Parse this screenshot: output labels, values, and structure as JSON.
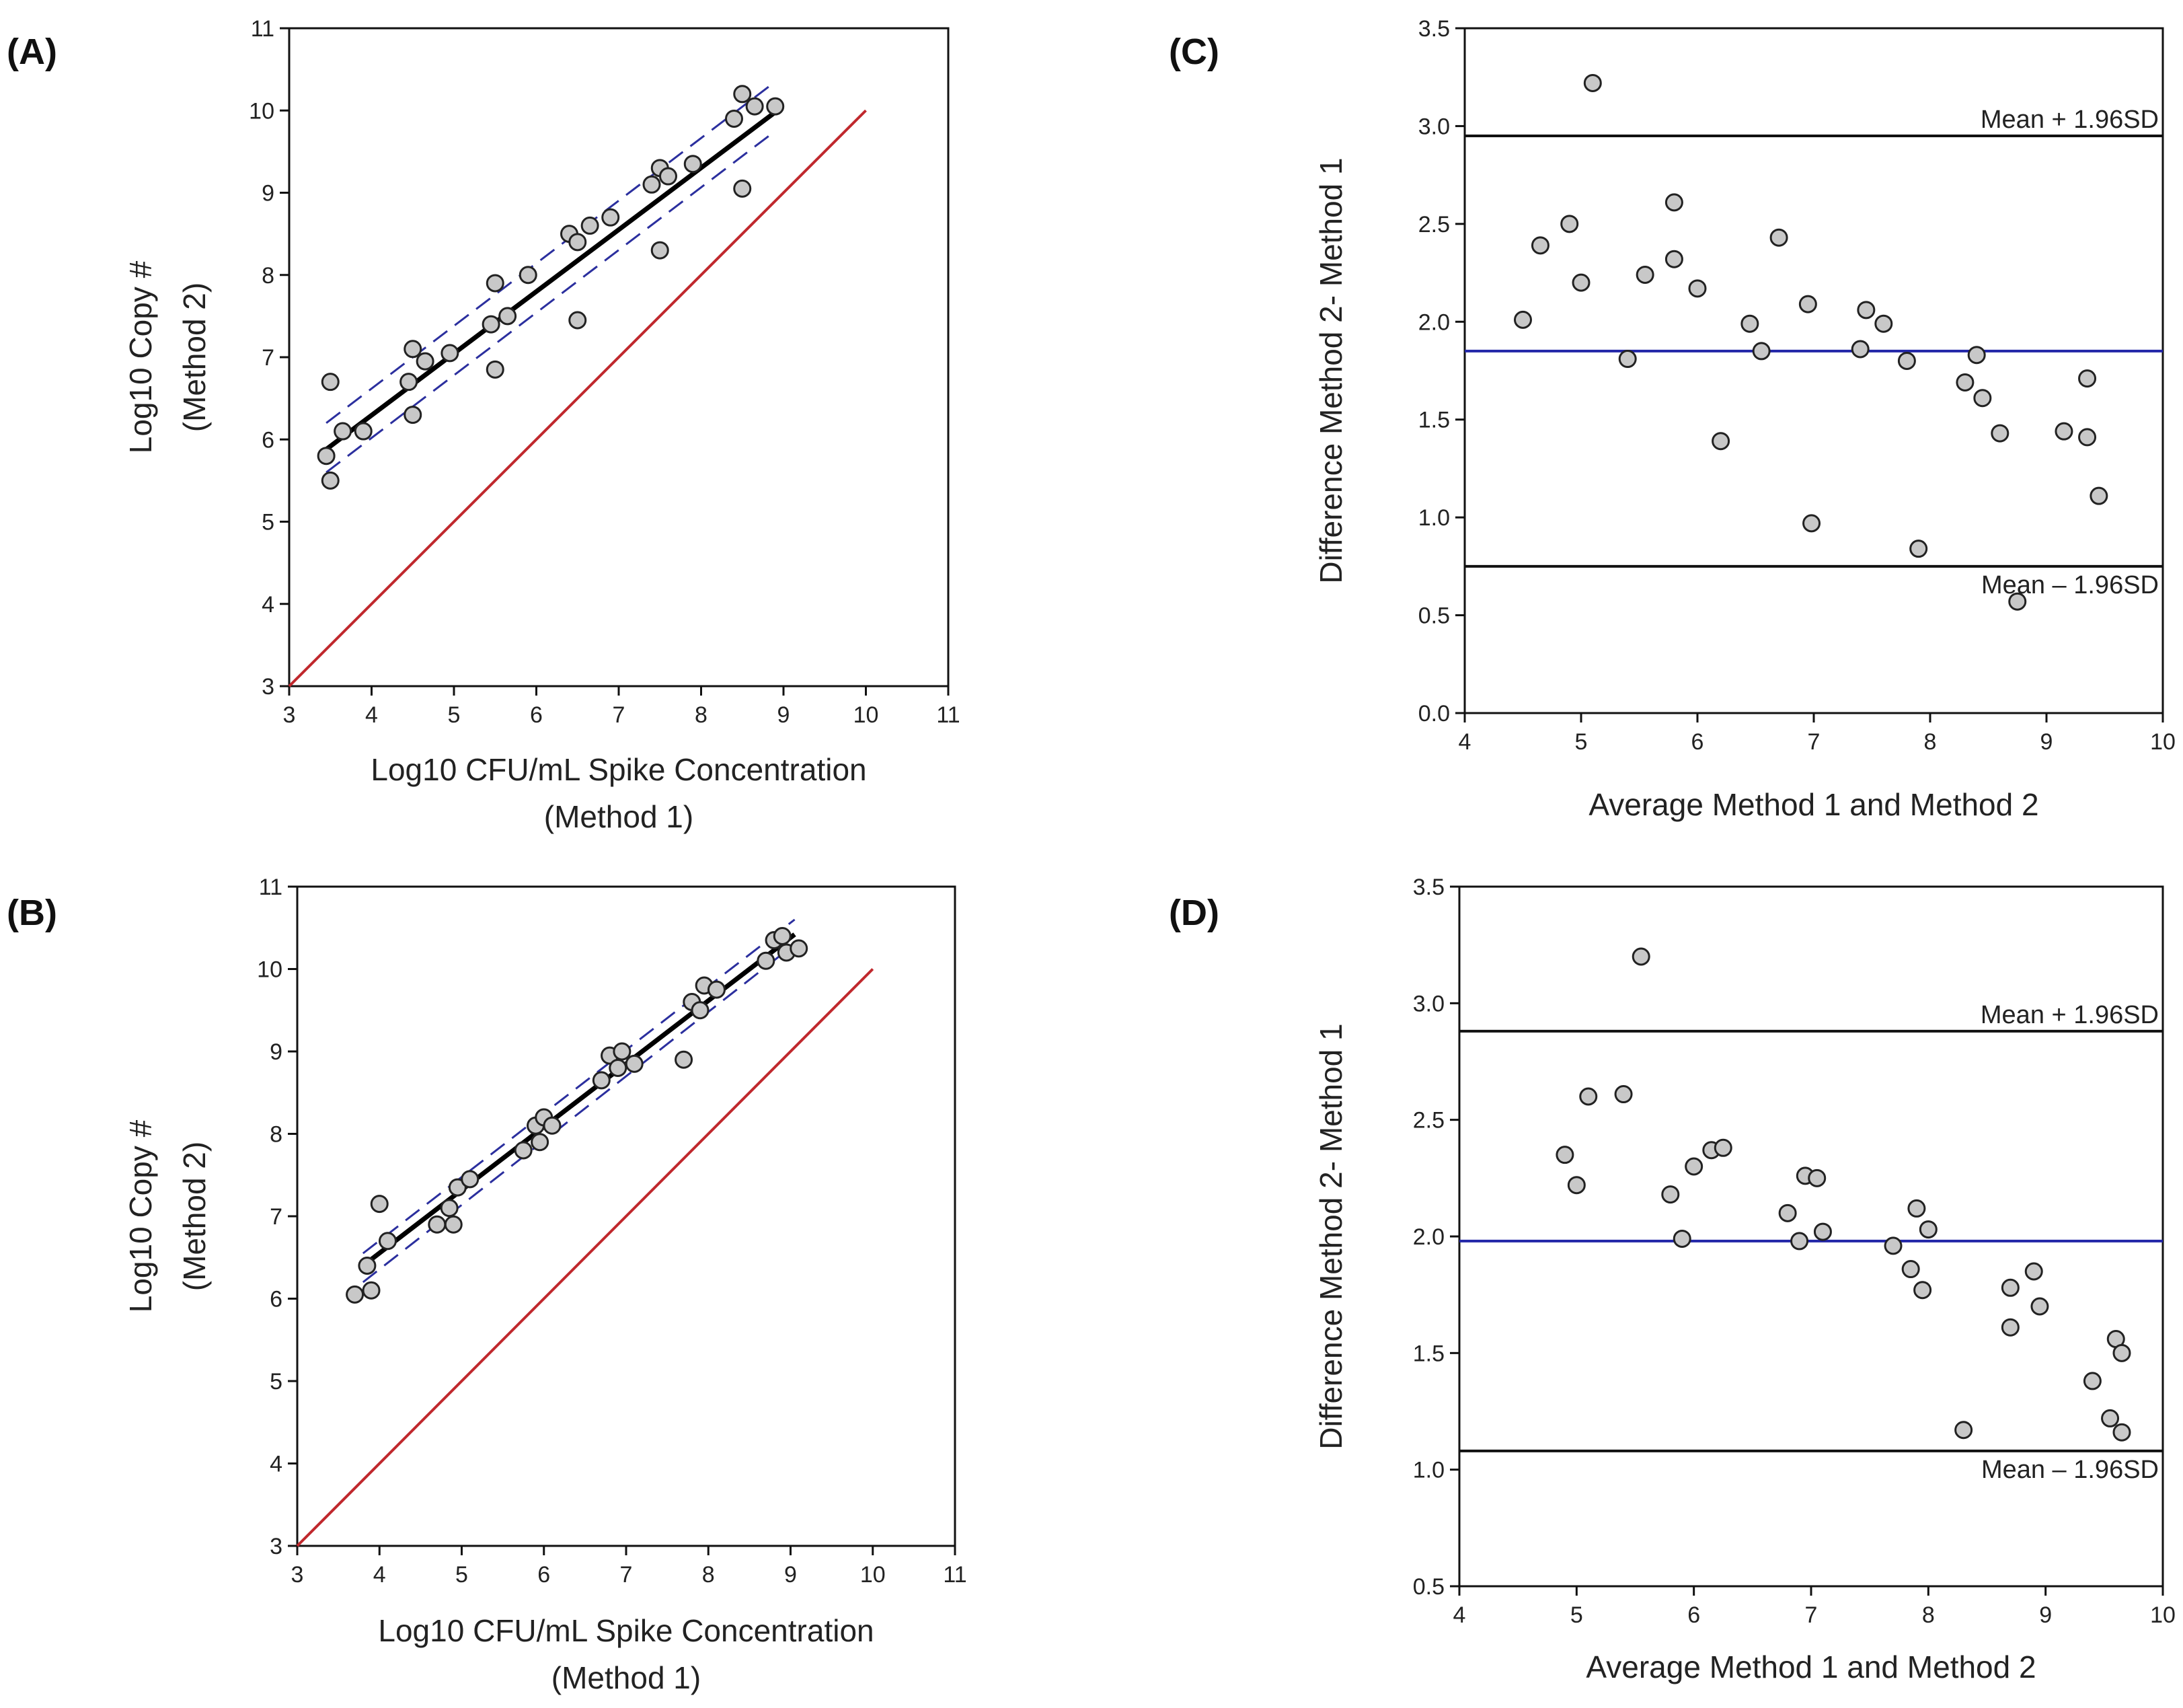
{
  "chart_data": [
    {
      "panel": "(A)",
      "type": "scatter",
      "xlabel": [
        "Log10 CFU/mL Spike Concentration",
        "(Method 1)"
      ],
      "ylabel": [
        "Log10 Copy #",
        "(Method 2)"
      ],
      "xlim": [
        3,
        11
      ],
      "ylim": [
        3,
        11
      ],
      "xticks": [
        "3",
        "4",
        "5",
        "6",
        "7",
        "8",
        "9",
        "10",
        "11"
      ],
      "yticks": [
        "3",
        "4",
        "5",
        "6",
        "7",
        "8",
        "9",
        "10",
        "11"
      ],
      "points": [
        [
          3.45,
          5.8
        ],
        [
          3.5,
          5.5
        ],
        [
          3.5,
          6.7
        ],
        [
          3.65,
          6.1
        ],
        [
          3.9,
          6.1
        ],
        [
          4.45,
          6.7
        ],
        [
          4.5,
          7.1
        ],
        [
          4.5,
          6.3
        ],
        [
          4.65,
          6.95
        ],
        [
          4.95,
          7.05
        ],
        [
          5.45,
          7.4
        ],
        [
          5.5,
          7.9
        ],
        [
          5.5,
          6.85
        ],
        [
          5.65,
          7.5
        ],
        [
          5.9,
          8.0
        ],
        [
          6.4,
          8.5
        ],
        [
          6.5,
          8.4
        ],
        [
          6.5,
          7.45
        ],
        [
          6.65,
          8.6
        ],
        [
          6.9,
          8.7
        ],
        [
          7.4,
          9.1
        ],
        [
          7.5,
          9.3
        ],
        [
          7.5,
          8.3
        ],
        [
          7.6,
          9.2
        ],
        [
          7.9,
          9.35
        ],
        [
          8.4,
          9.9
        ],
        [
          8.5,
          10.2
        ],
        [
          8.5,
          9.05
        ],
        [
          8.65,
          10.05
        ],
        [
          8.9,
          10.05
        ]
      ],
      "fit": {
        "from": [
          3.45,
          5.88
        ],
        "to": [
          8.9,
          9.98
        ]
      },
      "ci": {
        "upper": [
          [
            3.45,
            6.2
          ],
          [
            8.9,
            10.35
          ]
        ],
        "lower": [
          [
            3.45,
            5.6
          ],
          [
            8.9,
            9.75
          ]
        ]
      },
      "identity": {
        "from": [
          3,
          3
        ],
        "to": [
          10,
          10
        ]
      }
    },
    {
      "panel": "(B)",
      "type": "scatter",
      "xlabel": [
        "Log10 CFU/mL Spike Concentration",
        "(Method 1)"
      ],
      "ylabel": [
        "Log10 Copy #",
        "(Method 2)"
      ],
      "xlim": [
        3,
        11
      ],
      "ylim": [
        3,
        11
      ],
      "xticks": [
        "3",
        "4",
        "5",
        "6",
        "7",
        "8",
        "9",
        "10",
        "11"
      ],
      "yticks": [
        "3",
        "4",
        "5",
        "6",
        "7",
        "8",
        "9",
        "10",
        "11"
      ],
      "points": [
        [
          3.7,
          6.05
        ],
        [
          3.85,
          6.4
        ],
        [
          3.9,
          6.1
        ],
        [
          4.0,
          7.15
        ],
        [
          4.1,
          6.7
        ],
        [
          4.7,
          6.9
        ],
        [
          4.85,
          7.1
        ],
        [
          4.9,
          6.9
        ],
        [
          4.95,
          7.35
        ],
        [
          5.1,
          7.45
        ],
        [
          5.75,
          7.8
        ],
        [
          5.9,
          8.1
        ],
        [
          5.95,
          7.9
        ],
        [
          6.0,
          8.2
        ],
        [
          6.1,
          8.1
        ],
        [
          6.7,
          8.65
        ],
        [
          6.8,
          8.95
        ],
        [
          6.9,
          8.8
        ],
        [
          6.95,
          9.0
        ],
        [
          7.1,
          8.85
        ],
        [
          7.7,
          8.9
        ],
        [
          7.8,
          9.6
        ],
        [
          7.9,
          9.5
        ],
        [
          7.95,
          9.8
        ],
        [
          8.1,
          9.75
        ],
        [
          8.7,
          10.1
        ],
        [
          8.8,
          10.35
        ],
        [
          8.9,
          10.4
        ],
        [
          8.95,
          10.2
        ],
        [
          9.1,
          10.25
        ]
      ],
      "fit": {
        "from": [
          3.8,
          6.4
        ],
        "to": [
          9.05,
          10.42
        ]
      },
      "ci": {
        "upper": [
          [
            3.8,
            6.55
          ],
          [
            9.05,
            10.6
          ]
        ],
        "lower": [
          [
            3.8,
            6.2
          ],
          [
            9.05,
            10.3
          ]
        ]
      },
      "identity": {
        "from": [
          3,
          3
        ],
        "to": [
          10,
          10
        ]
      }
    },
    {
      "panel": "(C)",
      "type": "scatter",
      "xlabel": [
        "Average Method 1 and Method 2"
      ],
      "ylabel": [
        "Difference Method 2- Method 1"
      ],
      "xlim": [
        4,
        10
      ],
      "ylim": [
        0,
        3.5
      ],
      "xticks": [
        "4",
        "5",
        "6",
        "7",
        "8",
        "9",
        "10"
      ],
      "yticks": [
        "0.0",
        "0.5",
        "1.0",
        "1.5",
        "2.0",
        "2.5",
        "3.0",
        "3.5"
      ],
      "mean": 1.85,
      "upper_loa": {
        "value": 2.95,
        "label": "Mean + 1.96SD"
      },
      "lower_loa": {
        "value": 0.75,
        "label": "Mean – 1.96SD"
      },
      "points": [
        [
          4.5,
          2.01
        ],
        [
          4.65,
          2.39
        ],
        [
          4.9,
          2.5
        ],
        [
          5.0,
          2.2
        ],
        [
          5.1,
          3.22
        ],
        [
          5.4,
          1.81
        ],
        [
          5.55,
          2.24
        ],
        [
          5.8,
          2.61
        ],
        [
          5.8,
          2.32
        ],
        [
          6.0,
          2.17
        ],
        [
          6.2,
          1.39
        ],
        [
          6.45,
          1.99
        ],
        [
          6.55,
          1.85
        ],
        [
          6.7,
          2.43
        ],
        [
          6.95,
          2.09
        ],
        [
          6.98,
          0.97
        ],
        [
          7.4,
          1.86
        ],
        [
          7.45,
          2.06
        ],
        [
          7.6,
          1.99
        ],
        [
          7.8,
          1.8
        ],
        [
          7.9,
          0.84
        ],
        [
          8.3,
          1.69
        ],
        [
          8.4,
          1.83
        ],
        [
          8.45,
          1.61
        ],
        [
          8.6,
          1.43
        ],
        [
          8.75,
          0.57
        ],
        [
          9.15,
          1.44
        ],
        [
          9.35,
          1.41
        ],
        [
          9.35,
          1.71
        ],
        [
          9.45,
          1.11
        ]
      ]
    },
    {
      "panel": "(D)",
      "type": "scatter",
      "xlabel": [
        "Average Method 1 and Method 2"
      ],
      "ylabel": [
        "Difference Method 2- Method 1"
      ],
      "xlim": [
        4,
        10
      ],
      "ylim": [
        0.5,
        3.5
      ],
      "xticks": [
        "4",
        "5",
        "6",
        "7",
        "8",
        "9",
        "10"
      ],
      "yticks": [
        "0.5",
        "1.0",
        "1.5",
        "2.0",
        "2.5",
        "3.0",
        "3.5"
      ],
      "mean": 1.98,
      "upper_loa": {
        "value": 2.88,
        "label": "Mean + 1.96SD"
      },
      "lower_loa": {
        "value": 1.08,
        "label": "Mean – 1.96SD"
      },
      "points": [
        [
          4.9,
          2.35
        ],
        [
          5.0,
          2.22
        ],
        [
          5.1,
          2.6
        ],
        [
          5.4,
          2.61
        ],
        [
          5.55,
          3.2
        ],
        [
          5.8,
          2.18
        ],
        [
          5.9,
          1.99
        ],
        [
          6.0,
          2.3
        ],
        [
          6.15,
          2.37
        ],
        [
          6.25,
          2.38
        ],
        [
          6.8,
          2.1
        ],
        [
          6.9,
          1.98
        ],
        [
          6.95,
          2.26
        ],
        [
          7.05,
          2.25
        ],
        [
          7.1,
          2.02
        ],
        [
          7.7,
          1.96
        ],
        [
          7.85,
          1.86
        ],
        [
          7.9,
          2.12
        ],
        [
          7.95,
          1.77
        ],
        [
          8.0,
          2.03
        ],
        [
          8.3,
          1.17
        ],
        [
          8.7,
          1.78
        ],
        [
          8.7,
          1.61
        ],
        [
          8.9,
          1.85
        ],
        [
          8.95,
          1.7
        ],
        [
          9.4,
          1.38
        ],
        [
          9.55,
          1.22
        ],
        [
          9.6,
          1.56
        ],
        [
          9.65,
          1.5
        ],
        [
          9.65,
          1.16
        ]
      ]
    }
  ]
}
